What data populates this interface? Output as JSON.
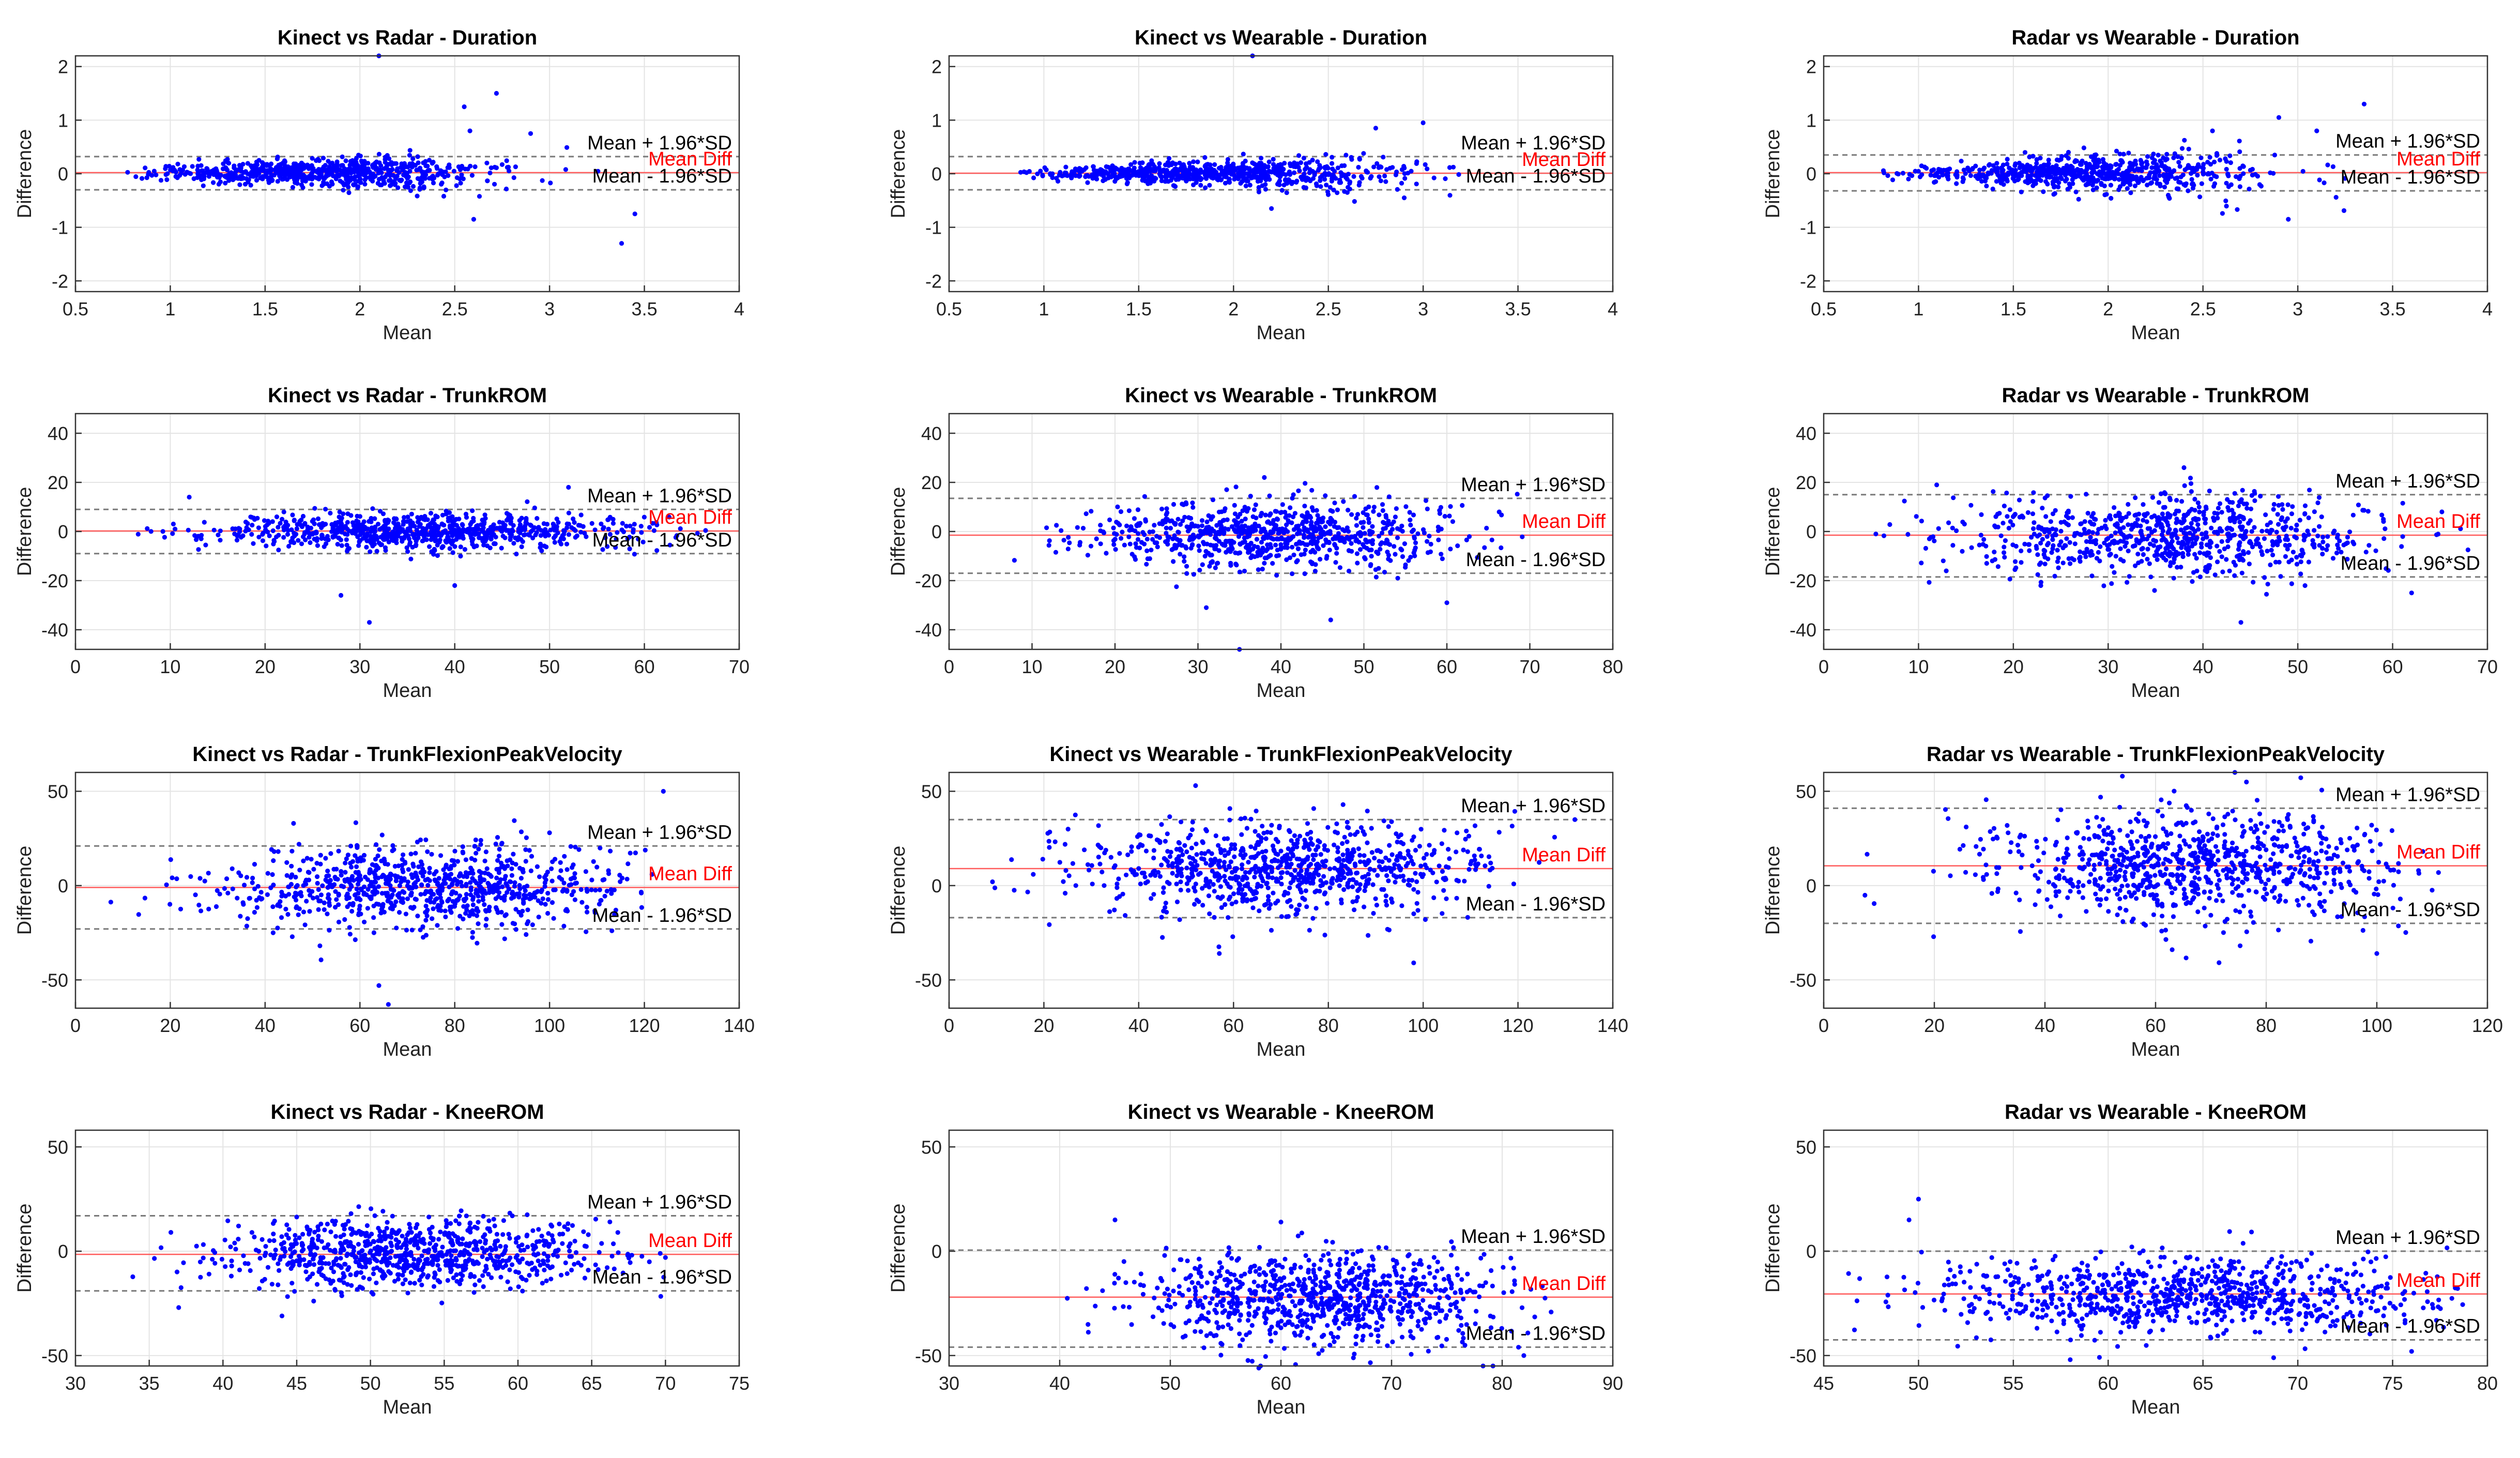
{
  "figure": {
    "background": "#ffffff",
    "point_color": "#0000ff",
    "mean_line_color": "#ff0000",
    "loa_line_color": "#777777"
  },
  "chart_data": [
    {
      "type": "scatter",
      "title": "Kinect vs Radar - Duration",
      "xlabel": "Mean",
      "ylabel": "Difference",
      "xlim": [
        0.5,
        4
      ],
      "ylim": [
        -2.2,
        2.2
      ],
      "xticks": [
        0.5,
        1,
        1.5,
        2,
        2.5,
        3,
        3.5,
        4
      ],
      "yticks": [
        -2,
        -1,
        0,
        1,
        2
      ],
      "xtick_labels": [
        "0.5",
        "1",
        "1.5",
        "2",
        "2.5",
        "3",
        "3.5",
        "4"
      ],
      "ytick_labels": [
        "-2",
        "-1",
        "0",
        "1",
        "2"
      ],
      "mean_diff": 0.02,
      "upper_loa": 0.32,
      "lower_loa": -0.3,
      "labels": {
        "upper": "Mean + 1.96*SD",
        "mean": "Mean Diff",
        "lower": "Mean - 1.96*SD"
      },
      "x_dist": {
        "mean": 1.8,
        "sd": 0.45,
        "min": 0.75,
        "max": 3.5
      },
      "spread": {
        "base": 0.06,
        "slope": 0.06
      },
      "n_points": 700,
      "outliers": [
        [
          2.1,
          2.2
        ],
        [
          2.72,
          1.5
        ],
        [
          2.55,
          1.25
        ],
        [
          2.9,
          0.75
        ],
        [
          3.38,
          -1.3
        ],
        [
          2.6,
          -0.85
        ],
        [
          3.45,
          -0.75
        ],
        [
          2.58,
          0.8
        ]
      ]
    },
    {
      "type": "scatter",
      "title": "Kinect vs Wearable - Duration",
      "xlabel": "Mean",
      "ylabel": "Difference",
      "xlim": [
        0.5,
        4
      ],
      "ylim": [
        -2.2,
        2.2
      ],
      "xticks": [
        0.5,
        1,
        1.5,
        2,
        2.5,
        3,
        3.5,
        4
      ],
      "yticks": [
        -2,
        -1,
        0,
        1,
        2
      ],
      "xtick_labels": [
        "0.5",
        "1",
        "1.5",
        "2",
        "2.5",
        "3",
        "3.5",
        "4"
      ],
      "ytick_labels": [
        "-2",
        "-1",
        "0",
        "1",
        "2"
      ],
      "mean_diff": 0.01,
      "upper_loa": 0.32,
      "lower_loa": -0.3,
      "labels": {
        "upper": "Mean + 1.96*SD",
        "mean": "Mean Diff",
        "lower": "Mean - 1.96*SD"
      },
      "x_dist": {
        "mean": 1.9,
        "sd": 0.5,
        "min": 0.85,
        "max": 3.3
      },
      "spread": {
        "base": 0.05,
        "slope": 0.07
      },
      "n_points": 700,
      "outliers": [
        [
          2.1,
          2.2
        ],
        [
          2.75,
          0.85
        ],
        [
          3.0,
          0.95
        ],
        [
          2.2,
          -0.65
        ],
        [
          2.9,
          -0.45
        ],
        [
          2.6,
          -0.35
        ]
      ]
    },
    {
      "type": "scatter",
      "title": "Radar vs Wearable - Duration",
      "xlabel": "Mean",
      "ylabel": "Difference",
      "xlim": [
        0.5,
        4
      ],
      "ylim": [
        -2.2,
        2.2
      ],
      "xticks": [
        0.5,
        1,
        1.5,
        2,
        2.5,
        3,
        3.5,
        4
      ],
      "yticks": [
        -2,
        -1,
        0,
        1,
        2
      ],
      "xtick_labels": [
        "0.5",
        "1",
        "1.5",
        "2",
        "2.5",
        "3",
        "3.5",
        "4"
      ],
      "ytick_labels": [
        "-2",
        "-1",
        "0",
        "1",
        "2"
      ],
      "mean_diff": 0.02,
      "upper_loa": 0.35,
      "lower_loa": -0.32,
      "labels": {
        "upper": "Mean + 1.96*SD",
        "mean": "Mean Diff",
        "lower": "Mean - 1.96*SD"
      },
      "x_dist": {
        "mean": 1.9,
        "sd": 0.5,
        "min": 0.8,
        "max": 3.4
      },
      "spread": {
        "base": 0.05,
        "slope": 0.1
      },
      "n_points": 700,
      "outliers": [
        [
          3.35,
          1.3
        ],
        [
          2.9,
          1.05
        ],
        [
          2.55,
          0.8
        ],
        [
          2.95,
          -0.85
        ],
        [
          3.1,
          0.8
        ]
      ]
    },
    {
      "type": "scatter",
      "title": "Kinect vs Radar - TrunkROM",
      "xlabel": "Mean",
      "ylabel": "Difference",
      "xlim": [
        0,
        70
      ],
      "ylim": [
        -48,
        48
      ],
      "xticks": [
        0,
        10,
        20,
        30,
        40,
        50,
        60,
        70
      ],
      "yticks": [
        -40,
        -20,
        0,
        20,
        40
      ],
      "xtick_labels": [
        "0",
        "10",
        "20",
        "30",
        "40",
        "50",
        "60",
        "70"
      ],
      "ytick_labels": [
        "-40",
        "-20",
        "0",
        "20",
        "40"
      ],
      "mean_diff": 0.2,
      "upper_loa": 9,
      "lower_loa": -9,
      "labels": {
        "upper": "Mean + 1.96*SD",
        "mean": "Mean Diff",
        "lower": "Mean - 1.96*SD"
      },
      "x_dist": {
        "mean": 36,
        "sd": 11,
        "min": 5,
        "max": 69
      },
      "spread": {
        "base": 3.5,
        "slope": 0
      },
      "n_points": 800,
      "outliers": [
        [
          31,
          -37
        ],
        [
          28,
          -26
        ],
        [
          52,
          18
        ],
        [
          12,
          14
        ],
        [
          40,
          -22
        ]
      ]
    },
    {
      "type": "scatter",
      "title": "Kinect vs Wearable - TrunkROM",
      "xlabel": "Mean",
      "ylabel": "Difference",
      "xlim": [
        0,
        80
      ],
      "ylim": [
        -48,
        48
      ],
      "xticks": [
        0,
        10,
        20,
        30,
        40,
        50,
        60,
        70,
        80
      ],
      "yticks": [
        -40,
        -20,
        0,
        20,
        40
      ],
      "xtick_labels": [
        "0",
        "10",
        "20",
        "30",
        "40",
        "50",
        "60",
        "70",
        "80"
      ],
      "ytick_labels": [
        "-40",
        "-20",
        "0",
        "20",
        "40"
      ],
      "mean_diff": -1.5,
      "upper_loa": 13.5,
      "lower_loa": -17,
      "labels": {
        "upper": "Mean + 1.96*SD",
        "mean": "Mean Diff",
        "lower": "Mean - 1.96*SD"
      },
      "x_dist": {
        "mean": 39,
        "sd": 11,
        "min": 7,
        "max": 70
      },
      "spread": {
        "base": 7,
        "slope": 0
      },
      "n_points": 800,
      "outliers": [
        [
          35,
          -48
        ],
        [
          46,
          -36
        ],
        [
          60,
          -29
        ],
        [
          31,
          -31
        ],
        [
          38,
          22
        ]
      ]
    },
    {
      "type": "scatter",
      "title": "Radar vs Wearable - TrunkROM",
      "xlabel": "Mean",
      "ylabel": "Difference",
      "xlim": [
        0,
        70
      ],
      "ylim": [
        -48,
        48
      ],
      "xticks": [
        0,
        10,
        20,
        30,
        40,
        50,
        60,
        70
      ],
      "yticks": [
        -40,
        -20,
        0,
        20,
        40
      ],
      "xtick_labels": [
        "0",
        "10",
        "20",
        "30",
        "40",
        "50",
        "60",
        "70"
      ],
      "ytick_labels": [
        "-40",
        "-20",
        "0",
        "20",
        "40"
      ],
      "mean_diff": -1.5,
      "upper_loa": 15,
      "lower_loa": -18.5,
      "labels": {
        "upper": "Mean + 1.96*SD",
        "mean": "Mean Diff",
        "lower": "Mean - 1.96*SD"
      },
      "x_dist": {
        "mean": 36,
        "sd": 11,
        "min": 5,
        "max": 68
      },
      "spread": {
        "base": 8,
        "slope": 0
      },
      "n_points": 800,
      "outliers": [
        [
          38,
          26
        ],
        [
          44,
          -37
        ],
        [
          62,
          -25
        ],
        [
          5.5,
          -1
        ]
      ]
    },
    {
      "type": "scatter",
      "title": "Kinect vs Radar - TrunkFlexionPeakVelocity",
      "xlabel": "Mean",
      "ylabel": "Difference",
      "xlim": [
        0,
        140
      ],
      "ylim": [
        -65,
        60
      ],
      "xticks": [
        0,
        20,
        40,
        60,
        80,
        100,
        120,
        140
      ],
      "yticks": [
        -50,
        0,
        50
      ],
      "xtick_labels": [
        "0",
        "20",
        "40",
        "60",
        "80",
        "100",
        "120",
        "140"
      ],
      "ytick_labels": [
        "-50",
        "0",
        "50"
      ],
      "mean_diff": -1,
      "upper_loa": 21,
      "lower_loa": -23,
      "labels": {
        "upper": "Mean + 1.96*SD",
        "mean": "Mean Diff",
        "lower": "Mean - 1.96*SD"
      },
      "x_dist": {
        "mean": 74,
        "sd": 22,
        "min": 3,
        "max": 125
      },
      "spread": {
        "base": 11,
        "slope": 0
      },
      "n_points": 850,
      "outliers": [
        [
          124,
          50
        ],
        [
          66,
          -63
        ],
        [
          64,
          -53
        ],
        [
          46,
          33
        ],
        [
          100,
          28
        ]
      ]
    },
    {
      "type": "scatter",
      "title": "Kinect vs Wearable - TrunkFlexionPeakVelocity",
      "xlabel": "Mean",
      "ylabel": "Difference",
      "xlim": [
        0,
        140
      ],
      "ylim": [
        -65,
        60
      ],
      "xticks": [
        0,
        20,
        40,
        60,
        80,
        100,
        120,
        140
      ],
      "yticks": [
        -50,
        0,
        50
      ],
      "xtick_labels": [
        "0",
        "20",
        "40",
        "60",
        "80",
        "100",
        "120",
        "140"
      ],
      "ytick_labels": [
        "-50",
        "0",
        "50"
      ],
      "mean_diff": 9,
      "upper_loa": 35,
      "lower_loa": -17,
      "labels": {
        "upper": "Mean + 1.96*SD",
        "mean": "Mean Diff",
        "lower": "Mean - 1.96*SD"
      },
      "x_dist": {
        "mean": 70,
        "sd": 22,
        "min": 4,
        "max": 132
      },
      "spread": {
        "base": 12,
        "slope": 0
      },
      "n_points": 850,
      "outliers": [
        [
          52,
          53
        ],
        [
          98,
          -41
        ],
        [
          57,
          -36
        ],
        [
          132,
          35
        ]
      ]
    },
    {
      "type": "scatter",
      "title": "Radar vs Wearable - TrunkFlexionPeakVelocity",
      "xlabel": "Mean",
      "ylabel": "Difference",
      "xlim": [
        0,
        120
      ],
      "ylim": [
        -65,
        60
      ],
      "xticks": [
        0,
        20,
        40,
        60,
        80,
        100,
        120
      ],
      "yticks": [
        -50,
        0,
        50
      ],
      "xtick_labels": [
        "0",
        "20",
        "40",
        "60",
        "80",
        "100",
        "120"
      ],
      "ytick_labels": [
        "-50",
        "0",
        "50"
      ],
      "mean_diff": 10.5,
      "upper_loa": 41,
      "lower_loa": -20,
      "labels": {
        "upper": "Mean + 1.96*SD",
        "mean": "Mean Diff",
        "lower": "Mean - 1.96*SD"
      },
      "x_dist": {
        "mean": 66,
        "sd": 19,
        "min": 5,
        "max": 113
      },
      "spread": {
        "base": 14,
        "slope": 0
      },
      "n_points": 850,
      "outliers": [
        [
          54,
          58
        ],
        [
          100,
          -36
        ],
        [
          63,
          -34
        ]
      ]
    },
    {
      "type": "scatter",
      "title": "Kinect vs Radar - KneeROM",
      "xlabel": "Mean",
      "ylabel": "Difference",
      "xlim": [
        30,
        75
      ],
      "ylim": [
        -55,
        58
      ],
      "xticks": [
        30,
        35,
        40,
        45,
        50,
        55,
        60,
        65,
        70,
        75
      ],
      "yticks": [
        -50,
        0,
        50
      ],
      "xtick_labels": [
        "30",
        "35",
        "40",
        "45",
        "50",
        "55",
        "60",
        "65",
        "70",
        "75"
      ],
      "ytick_labels": [
        "-50",
        "0",
        "50"
      ],
      "mean_diff": -1.5,
      "upper_loa": 17,
      "lower_loa": -19,
      "labels": {
        "upper": "Mean + 1.96*SD",
        "mean": "Mean Diff",
        "lower": "Mean - 1.96*SD"
      },
      "x_dist": {
        "mean": 53,
        "sd": 6.5,
        "min": 32,
        "max": 70
      },
      "spread": {
        "base": 8,
        "slope": 0
      },
      "n_points": 850,
      "outliers": [
        [
          44,
          -31
        ],
        [
          37,
          -27
        ],
        [
          70,
          -3
        ]
      ]
    },
    {
      "type": "scatter",
      "title": "Kinect vs Wearable - KneeROM",
      "xlabel": "Mean",
      "ylabel": "Difference",
      "xlim": [
        30,
        90
      ],
      "ylim": [
        -55,
        58
      ],
      "xticks": [
        30,
        40,
        50,
        60,
        70,
        80,
        90
      ],
      "yticks": [
        -50,
        0,
        50
      ],
      "xtick_labels": [
        "30",
        "40",
        "50",
        "60",
        "70",
        "80",
        "90"
      ],
      "ytick_labels": [
        "-50",
        "0",
        "50"
      ],
      "mean_diff": -22,
      "upper_loa": 0.5,
      "lower_loa": -46,
      "labels": {
        "upper": "Mean + 1.96*SD",
        "mean": "Mean Diff",
        "lower": "Mean - 1.96*SD"
      },
      "x_dist": {
        "mean": 64,
        "sd": 8,
        "min": 40,
        "max": 85
      },
      "spread": {
        "base": 11,
        "slope": 0
      },
      "n_points": 850,
      "outliers": [
        [
          45,
          15
        ],
        [
          60,
          14
        ],
        [
          58,
          -56
        ]
      ]
    },
    {
      "type": "scatter",
      "title": "Radar vs Wearable - KneeROM",
      "xlabel": "Mean",
      "ylabel": "Difference",
      "xlim": [
        45,
        80
      ],
      "ylim": [
        -55,
        58
      ],
      "xticks": [
        45,
        50,
        55,
        60,
        65,
        70,
        75,
        80
      ],
      "yticks": [
        -50,
        0,
        50
      ],
      "xtick_labels": [
        "45",
        "50",
        "55",
        "60",
        "65",
        "70",
        "75",
        "80"
      ],
      "ytick_labels": [
        "-50",
        "0",
        "50"
      ],
      "mean_diff": -20.5,
      "upper_loa": 0,
      "lower_loa": -42.5,
      "labels": {
        "upper": "Mean + 1.96*SD",
        "mean": "Mean Diff",
        "lower": "Mean - 1.96*SD"
      },
      "x_dist": {
        "mean": 64,
        "sd": 7,
        "min": 46,
        "max": 79
      },
      "spread": {
        "base": 9,
        "slope": 0
      },
      "n_points": 850,
      "outliers": [
        [
          50,
          25
        ],
        [
          49.5,
          15
        ],
        [
          76,
          -48
        ],
        [
          58,
          -52
        ]
      ]
    }
  ]
}
